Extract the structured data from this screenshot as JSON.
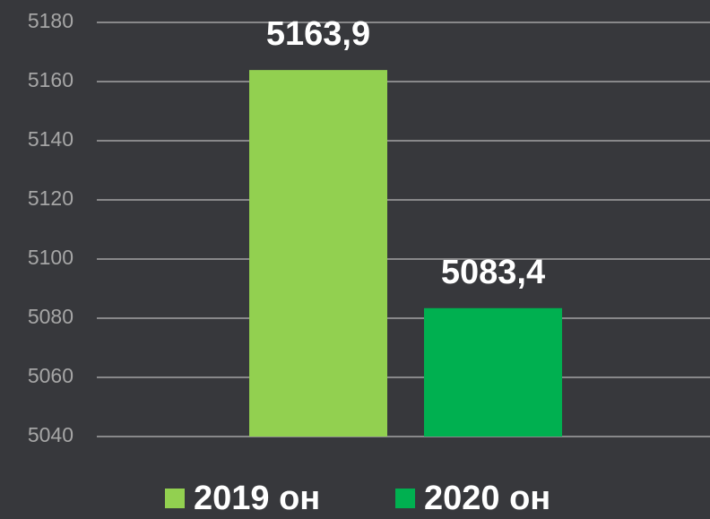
{
  "chart_data": {
    "type": "bar",
    "categories": [
      null
    ],
    "series": [
      {
        "name": "2019 он",
        "color": "#92d050",
        "values": [
          5163.9
        ],
        "value_labels": [
          "5163,9"
        ]
      },
      {
        "name": "2020 он",
        "color": "#00b050",
        "values": [
          5083.4
        ],
        "value_labels": [
          "5083,4"
        ]
      }
    ],
    "ylim": [
      5040,
      5180
    ],
    "yticks": [
      5040,
      5060,
      5080,
      5100,
      5120,
      5140,
      5160,
      5180
    ],
    "grid": true,
    "legend": "bottom"
  }
}
